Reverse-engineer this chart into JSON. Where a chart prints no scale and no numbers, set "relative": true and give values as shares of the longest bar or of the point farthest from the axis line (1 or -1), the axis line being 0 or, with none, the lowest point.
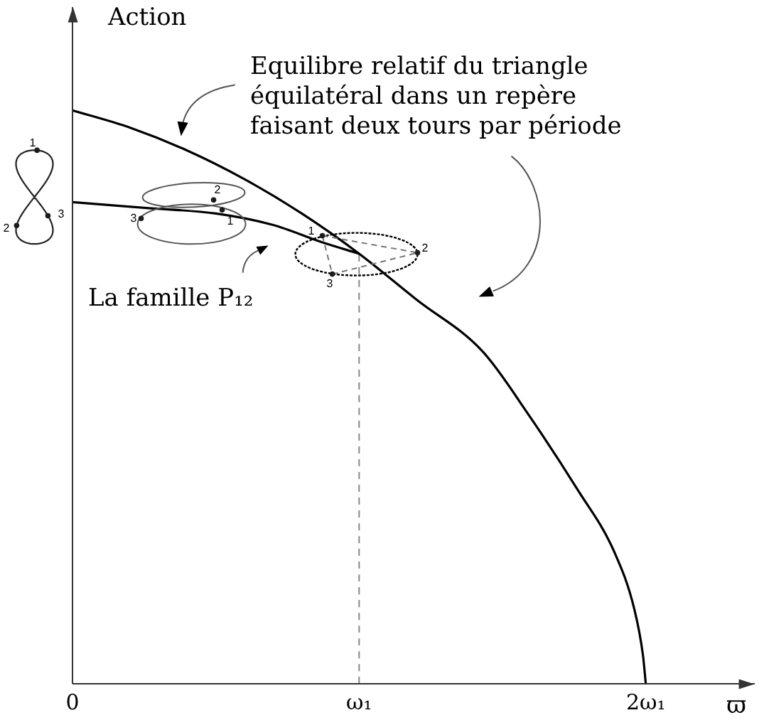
{
  "chart_data": {
    "type": "line",
    "relative": true,
    "ylabel": "Action",
    "xlabel": "ϖ",
    "xlim": [
      0,
      2.38
    ],
    "xticks": [
      0,
      {
        "value": 1,
        "label": "ω₁"
      },
      {
        "value": 2,
        "label": "2ω₁"
      }
    ],
    "marker": "none",
    "series": [
      {
        "color": "#000000",
        "x": [
          0,
          0.2,
          0.4,
          0.6,
          0.8,
          1,
          1.2,
          1.43,
          1.59,
          1.76,
          1.89,
          1.96,
          1.99,
          2
        ],
        "values": [
          1,
          0.97,
          0.93,
          0.88,
          0.82,
          0.75,
          0.67,
          0.58,
          0.47,
          0.34,
          0.23,
          0.13,
          0.05,
          0
        ]
      },
      {
        "color": "#000000",
        "x": [
          0,
          0.25,
          0.5,
          0.7,
          0.87,
          1
        ],
        "values": [
          0.84,
          0.83,
          0.82,
          0.8,
          0.77,
          0.75
        ]
      },
      {
        "color": "#888888",
        "line_style": "dashed",
        "x": [
          1,
          1
        ],
        "values": [
          0,
          0.75
        ]
      }
    ],
    "annotations": [
      "Equilibre relatif du triangle équilatéral dans un repère faisant deux tours par période",
      "La famille P₁₂",
      "1",
      "2",
      "3",
      "1",
      "2",
      "3",
      "1",
      "2",
      "3"
    ]
  }
}
